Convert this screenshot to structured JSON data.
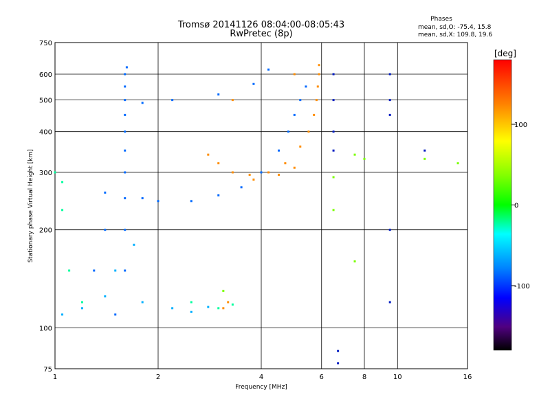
{
  "title": {
    "line1": "Tromsø 20141126 08:04:00-08:05:43",
    "line2": "RwPretec (8p)"
  },
  "stats": {
    "heading": "Phases",
    "line_o": "mean, sd,O: -75.4, 15.8",
    "line_x": "mean, sd,X: 109.8, 19.6"
  },
  "colorbar": {
    "label": "[deg]",
    "range": [
      -180,
      180
    ],
    "ticks": [
      {
        "value": 100,
        "label": "100"
      },
      {
        "value": 0,
        "label": "0"
      },
      {
        "value": -100,
        "label": "-100"
      }
    ]
  },
  "chart_data": {
    "type": "scatter",
    "xlabel": "Frequency [MHz]",
    "ylabel": "Stationary phase Virtual Height [km]",
    "x_scale": "log",
    "y_scale": "log",
    "xlim": [
      1,
      16
    ],
    "ylim": [
      75,
      750
    ],
    "grid": true,
    "x_ticks": [
      {
        "value": 1,
        "label": "1"
      },
      {
        "value": 2,
        "label": "2"
      },
      {
        "value": 4,
        "label": "4"
      },
      {
        "value": 6,
        "label": "6"
      },
      {
        "value": 8,
        "label": "8"
      },
      {
        "value": 10,
        "label": "10"
      },
      {
        "value": 16,
        "label": "16"
      }
    ],
    "y_ticks": [
      {
        "value": 75,
        "label": "75"
      },
      {
        "value": 100,
        "label": "100"
      },
      {
        "value": 200,
        "label": "200"
      },
      {
        "value": 300,
        "label": "300"
      },
      {
        "value": 400,
        "label": "400"
      },
      {
        "value": 500,
        "label": "500"
      },
      {
        "value": 600,
        "label": "600"
      },
      {
        "value": 750,
        "label": "750"
      }
    ],
    "series": [
      {
        "phase": -100,
        "points": [
          [
            1.5,
            110
          ],
          [
            1.6,
            150
          ],
          [
            1.6,
            200
          ],
          [
            1.6,
            250
          ],
          [
            1.6,
            300
          ],
          [
            1.6,
            350
          ],
          [
            1.6,
            400
          ],
          [
            1.6,
            450
          ],
          [
            1.6,
            500
          ],
          [
            1.6,
            550
          ],
          [
            1.6,
            600
          ],
          [
            1.62,
            630
          ],
          [
            1.8,
            250
          ],
          [
            2.0,
            245
          ],
          [
            2.5,
            245
          ],
          [
            3.0,
            255
          ],
          [
            3.5,
            270
          ],
          [
            4.0,
            300
          ],
          [
            4.5,
            350
          ],
          [
            4.8,
            400
          ],
          [
            5.0,
            450
          ],
          [
            5.2,
            500
          ],
          [
            5.4,
            550
          ],
          [
            1.8,
            490
          ],
          [
            2.2,
            500
          ],
          [
            3.0,
            520
          ],
          [
            3.8,
            560
          ],
          [
            4.2,
            620
          ],
          [
            1.3,
            150
          ],
          [
            1.4,
            200
          ],
          [
            1.4,
            260
          ]
        ]
      },
      {
        "phase": -80,
        "points": [
          [
            1.05,
            110
          ],
          [
            1.2,
            115
          ],
          [
            1.4,
            125
          ],
          [
            1.5,
            150
          ],
          [
            1.7,
            180
          ],
          [
            1.8,
            120
          ],
          [
            2.2,
            115
          ],
          [
            2.5,
            112
          ],
          [
            2.8,
            116
          ]
        ]
      },
      {
        "phase": -30,
        "points": [
          [
            1.0,
            300
          ],
          [
            1.05,
            280
          ],
          [
            1.05,
            230
          ],
          [
            1.1,
            150
          ],
          [
            1.2,
            120
          ],
          [
            2.5,
            120
          ],
          [
            3.0,
            115
          ],
          [
            3.3,
            118
          ]
        ]
      },
      {
        "phase": 120,
        "points": [
          [
            2.8,
            340
          ],
          [
            3.0,
            320
          ],
          [
            3.3,
            300
          ],
          [
            3.7,
            295
          ],
          [
            4.2,
            300
          ],
          [
            4.7,
            320
          ],
          [
            5.2,
            360
          ],
          [
            5.5,
            400
          ],
          [
            5.7,
            450
          ],
          [
            5.8,
            500
          ],
          [
            5.85,
            550
          ],
          [
            5.9,
            600
          ],
          [
            5.9,
            640
          ],
          [
            3.8,
            285
          ],
          [
            4.5,
            295
          ],
          [
            5.0,
            310
          ],
          [
            3.2,
            120
          ],
          [
            3.1,
            115
          ],
          [
            5.0,
            600
          ],
          [
            3.3,
            500
          ]
        ]
      },
      {
        "phase": 50,
        "points": [
          [
            3.1,
            130
          ],
          [
            6.5,
            290
          ],
          [
            6.5,
            230
          ],
          [
            7.5,
            160
          ],
          [
            7.5,
            340
          ],
          [
            8.0,
            330
          ],
          [
            12.0,
            330
          ],
          [
            15.0,
            320
          ]
        ]
      },
      {
        "phase": -120,
        "points": [
          [
            6.5,
            600
          ],
          [
            6.5,
            500
          ],
          [
            6.5,
            400
          ],
          [
            6.5,
            350
          ],
          [
            9.5,
            600
          ],
          [
            9.5,
            500
          ],
          [
            9.5,
            450
          ],
          [
            9.5,
            200
          ],
          [
            9.5,
            120
          ],
          [
            6.7,
            85
          ],
          [
            6.7,
            78
          ],
          [
            12.0,
            350
          ]
        ]
      }
    ]
  }
}
